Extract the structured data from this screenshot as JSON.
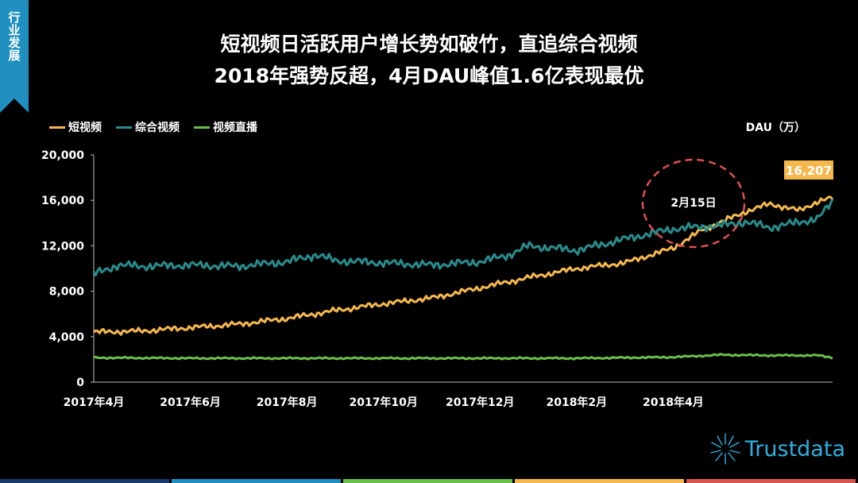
{
  "tag": "行业发展",
  "title_line1": "短视频日活跃用户增长势如破竹，直追综合视频",
  "title_line2": "2018年强势反超，4月DAU峰值1.6亿表现最优",
  "unit_label": "DAU（万）",
  "brand": "Trustdata",
  "footer_colors": [
    "#1b3a6b",
    "#1f8fbf",
    "#6abf4b",
    "#f5b84d",
    "#d9534f"
  ],
  "chart_data": {
    "type": "line",
    "ylim": [
      0,
      20000
    ],
    "y_ticks": [
      "0",
      "4,000",
      "8,000",
      "12,000",
      "16,000",
      "20,000"
    ],
    "x_ticks": [
      "2017年4月",
      "2017年6月",
      "2017年8月",
      "2017年10月",
      "2017年12月",
      "2018年2月",
      "2018年4月"
    ],
    "peak_label": "16,207",
    "annotation": "2月15日",
    "series": [
      {
        "name": "短视频",
        "color": "#f5b84d",
        "anchors": [
          [
            0,
            4400
          ],
          [
            1,
            4500
          ],
          [
            2,
            4800
          ],
          [
            3,
            5100
          ],
          [
            4,
            5600
          ],
          [
            5,
            6300
          ],
          [
            6,
            6900
          ],
          [
            7,
            7400
          ],
          [
            8,
            8300
          ],
          [
            9,
            9200
          ],
          [
            10,
            10000
          ],
          [
            11,
            10500
          ],
          [
            12,
            11800
          ],
          [
            12.6,
            13400
          ],
          [
            13,
            14100
          ],
          [
            13.5,
            15000
          ],
          [
            14,
            15700
          ],
          [
            14.6,
            15100
          ],
          [
            15,
            15900
          ],
          [
            15.3,
            16207
          ]
        ]
      },
      {
        "name": "综合视频",
        "color": "#2a8c8c",
        "anchors": [
          [
            0,
            9500
          ],
          [
            0.5,
            10300
          ],
          [
            1,
            10200
          ],
          [
            2,
            10300
          ],
          [
            3,
            10200
          ],
          [
            4,
            10600
          ],
          [
            4.6,
            11200
          ],
          [
            5,
            10700
          ],
          [
            6,
            10500
          ],
          [
            7,
            10300
          ],
          [
            8,
            10600
          ],
          [
            8.6,
            11200
          ],
          [
            9,
            12000
          ],
          [
            10,
            11600
          ],
          [
            11,
            12600
          ],
          [
            12,
            13500
          ],
          [
            13,
            13800
          ],
          [
            13.5,
            14100
          ],
          [
            14,
            13600
          ],
          [
            14.5,
            14000
          ],
          [
            15,
            14400
          ],
          [
            15.3,
            15900
          ]
        ]
      },
      {
        "name": "视频直播",
        "color": "#6abf4b",
        "anchors": [
          [
            0,
            2150
          ],
          [
            2,
            2100
          ],
          [
            4,
            2100
          ],
          [
            6,
            2100
          ],
          [
            8,
            2100
          ],
          [
            10,
            2100
          ],
          [
            12,
            2200
          ],
          [
            13,
            2400
          ],
          [
            14,
            2350
          ],
          [
            15,
            2350
          ],
          [
            15.3,
            2150
          ]
        ]
      }
    ]
  }
}
